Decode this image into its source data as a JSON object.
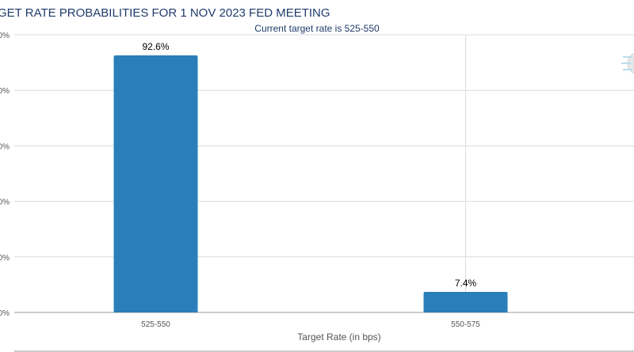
{
  "chart_data": {
    "type": "bar",
    "title": "GET RATE PROBABILITIES FOR 1 NOV 2023 FED MEETING",
    "subtitle": "Current target rate is 525-550",
    "xlabel": "Target Rate (in bps)",
    "ylabel": "",
    "categories": [
      "525-550",
      "550-575"
    ],
    "values": [
      92.6,
      7.4
    ],
    "value_labels": [
      "92.6%",
      "7.4%"
    ],
    "ylim": [
      0,
      100
    ],
    "ytick_labels": [
      "0%",
      "0%",
      "0%",
      "0%",
      "0%",
      "0%"
    ],
    "grid": true,
    "bar_color": "#2a7fba"
  }
}
